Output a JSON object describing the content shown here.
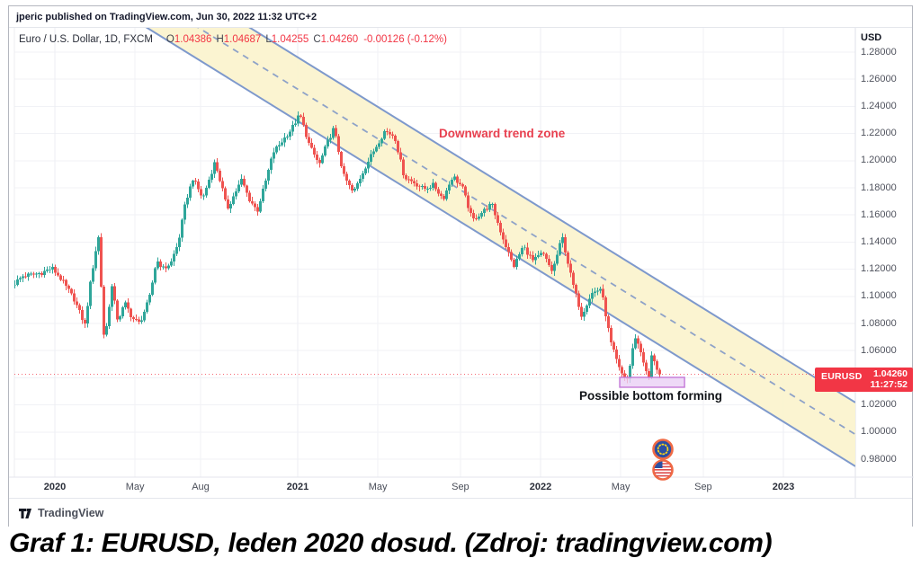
{
  "window": {
    "published_line": "jperic published on TradingView.com, Jun 30, 2022 11:32 UTC+2"
  },
  "header": {
    "symbol_title": "Euro / U.S. Dollar, 1D, FXCM",
    "ohlc": [
      {
        "label": "O",
        "value": "1.04386"
      },
      {
        "label": "H",
        "value": "1.04687"
      },
      {
        "label": "L",
        "value": "1.04255"
      },
      {
        "label": "C",
        "value": "1.04260"
      }
    ],
    "change": "-0.00126 (-0.12%)",
    "value_color": "#f23645"
  },
  "price_label": {
    "symbol": "EURUSD",
    "price": "1.04260",
    "countdown": "11:27:52",
    "bg": "#f23645"
  },
  "annotations": {
    "trend_zone": "Downward trend zone",
    "bottom": "Possible bottom forming"
  },
  "icons": {
    "top": "eu-flag",
    "bottom": "us-flag"
  },
  "footer": {
    "brand": "TradingView"
  },
  "caption": "Graf 1: EURUSD, leden 2020 dosud. (Zdroj: tradingview.com)",
  "chart_data": {
    "type": "candlestick",
    "symbol": "EURUSD",
    "timeframe": "1D",
    "exchange": "FXCM",
    "title": "Euro / U.S. Dollar, 1D, FXCM",
    "x_unit": "years since 2020-01-01",
    "price_axis": {
      "unit": "USD",
      "tick_max": 1.28,
      "tick_min": 0.98,
      "tick_step": 0.02,
      "decimals": 5
    },
    "time_axis": {
      "labels": [
        {
          "text": "2020",
          "t": 0.0,
          "major": true
        },
        {
          "text": "May",
          "t": 0.33,
          "major": false
        },
        {
          "text": "Aug",
          "t": 0.6,
          "major": false
        },
        {
          "text": "2021",
          "t": 1.0,
          "major": true
        },
        {
          "text": "May",
          "t": 1.33,
          "major": false
        },
        {
          "text": "Sep",
          "t": 1.67,
          "major": false
        },
        {
          "text": "2022",
          "t": 2.0,
          "major": true
        },
        {
          "text": "May",
          "t": 2.33,
          "major": false
        },
        {
          "text": "Sep",
          "t": 2.67,
          "major": false
        },
        {
          "text": "2023",
          "t": 3.0,
          "major": true
        }
      ]
    },
    "t_start": -0.165,
    "t_end": 2.497,
    "candles_per_year": 90,
    "noise_amp": 0.0035,
    "up_color": "#2fa69a",
    "down_color": "#ef5350",
    "anchors": [
      [
        -0.165,
        1.108
      ],
      [
        -0.12,
        1.115
      ],
      [
        -0.05,
        1.117
      ],
      [
        0.0,
        1.121
      ],
      [
        0.04,
        1.112
      ],
      [
        0.09,
        1.098
      ],
      [
        0.135,
        1.079
      ],
      [
        0.16,
        1.113
      ],
      [
        0.19,
        1.145
      ],
      [
        0.215,
        1.065
      ],
      [
        0.245,
        1.108
      ],
      [
        0.27,
        1.082
      ],
      [
        0.3,
        1.095
      ],
      [
        0.33,
        1.084
      ],
      [
        0.36,
        1.08
      ],
      [
        0.4,
        1.098
      ],
      [
        0.43,
        1.127
      ],
      [
        0.46,
        1.12
      ],
      [
        0.49,
        1.125
      ],
      [
        0.52,
        1.14
      ],
      [
        0.55,
        1.17
      ],
      [
        0.58,
        1.187
      ],
      [
        0.62,
        1.172
      ],
      [
        0.67,
        1.199
      ],
      [
        0.7,
        1.18
      ],
      [
        0.72,
        1.164
      ],
      [
        0.75,
        1.175
      ],
      [
        0.78,
        1.186
      ],
      [
        0.81,
        1.172
      ],
      [
        0.845,
        1.163
      ],
      [
        0.875,
        1.182
      ],
      [
        0.91,
        1.206
      ],
      [
        0.95,
        1.215
      ],
      [
        0.98,
        1.222
      ],
      [
        1.02,
        1.234
      ],
      [
        1.06,
        1.211
      ],
      [
        1.1,
        1.197
      ],
      [
        1.13,
        1.212
      ],
      [
        1.16,
        1.224
      ],
      [
        1.2,
        1.189
      ],
      [
        1.24,
        1.176
      ],
      [
        1.28,
        1.192
      ],
      [
        1.32,
        1.206
      ],
      [
        1.37,
        1.222
      ],
      [
        1.41,
        1.218
      ],
      [
        1.45,
        1.188
      ],
      [
        1.49,
        1.184
      ],
      [
        1.53,
        1.179
      ],
      [
        1.57,
        1.182
      ],
      [
        1.61,
        1.172
      ],
      [
        1.65,
        1.189
      ],
      [
        1.69,
        1.18
      ],
      [
        1.73,
        1.156
      ],
      [
        1.77,
        1.162
      ],
      [
        1.81,
        1.168
      ],
      [
        1.85,
        1.146
      ],
      [
        1.9,
        1.122
      ],
      [
        1.94,
        1.137
      ],
      [
        1.98,
        1.126
      ],
      [
        2.02,
        1.132
      ],
      [
        2.06,
        1.118
      ],
      [
        2.1,
        1.144
      ],
      [
        2.14,
        1.112
      ],
      [
        2.18,
        1.086
      ],
      [
        2.22,
        1.102
      ],
      [
        2.26,
        1.106
      ],
      [
        2.3,
        1.066
      ],
      [
        2.34,
        1.044
      ],
      [
        2.37,
        1.039
      ],
      [
        2.4,
        1.071
      ],
      [
        2.43,
        1.056
      ],
      [
        2.455,
        1.037
      ],
      [
        2.47,
        1.058
      ],
      [
        2.485,
        1.05
      ],
      [
        2.497,
        1.0426
      ]
    ],
    "trend_channel": {
      "p_upper_at_2020": 1.387,
      "p_lower_at_2020": 1.34,
      "slope_per_year": -0.1108,
      "fill": "#fbf3cf",
      "border": "#7e99cc",
      "midline": "#8ea2c8"
    },
    "current_price": 1.0426,
    "current_price_color": "#f23645",
    "highlight_box": {
      "t1": 2.326,
      "t2": 2.593,
      "p1": 1.033,
      "p2": 1.0403,
      "fill": "#ead0f5",
      "border": "#c478d8"
    }
  }
}
